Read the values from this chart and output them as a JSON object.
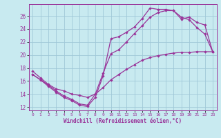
{
  "xlabel": "Windchill (Refroidissement éolien,°C)",
  "background_color": "#c8eaf0",
  "grid_color": "#a0c8d8",
  "line_color": "#993399",
  "marker": "D",
  "markersize": 2.2,
  "linewidth": 0.9,
  "xlim": [
    -0.5,
    23.5
  ],
  "ylim": [
    11.5,
    27.8
  ],
  "xticks": [
    0,
    1,
    2,
    3,
    4,
    5,
    6,
    7,
    8,
    9,
    10,
    11,
    12,
    13,
    14,
    15,
    16,
    17,
    18,
    19,
    20,
    21,
    22,
    23
  ],
  "yticks": [
    12,
    14,
    16,
    18,
    20,
    22,
    24,
    26
  ],
  "line1_x": [
    0,
    1,
    2,
    3,
    4,
    5,
    6,
    7,
    8,
    9,
    10,
    11,
    12,
    13,
    14,
    15,
    16,
    17,
    18,
    19,
    20,
    21,
    22,
    23
  ],
  "line1_y": [
    17.0,
    16.2,
    15.2,
    14.3,
    13.5,
    13.0,
    12.3,
    12.1,
    13.5,
    16.8,
    22.5,
    22.8,
    23.5,
    24.3,
    25.6,
    27.2,
    27.0,
    27.0,
    26.8,
    25.8,
    25.4,
    24.2,
    23.2,
    20.5
  ],
  "line2_x": [
    0,
    1,
    2,
    3,
    4,
    5,
    6,
    7,
    8,
    9,
    10,
    11,
    12,
    13,
    14,
    15,
    16,
    17,
    18,
    19,
    20,
    21,
    22,
    23
  ],
  "line2_y": [
    17.0,
    16.2,
    15.4,
    14.5,
    13.7,
    13.2,
    12.5,
    12.3,
    14.0,
    17.2,
    20.2,
    20.8,
    22.0,
    23.3,
    24.5,
    25.8,
    26.5,
    26.8,
    26.8,
    25.5,
    25.8,
    25.0,
    24.6,
    20.5
  ],
  "line3_x": [
    0,
    1,
    2,
    3,
    4,
    5,
    6,
    7,
    8,
    9,
    10,
    11,
    12,
    13,
    14,
    15,
    16,
    17,
    18,
    19,
    20,
    21,
    22,
    23
  ],
  "line3_y": [
    17.5,
    16.5,
    15.5,
    14.8,
    14.5,
    14.0,
    13.8,
    13.5,
    14.0,
    15.0,
    16.2,
    17.0,
    17.8,
    18.5,
    19.2,
    19.6,
    19.9,
    20.1,
    20.3,
    20.4,
    20.4,
    20.5,
    20.5,
    20.5
  ]
}
